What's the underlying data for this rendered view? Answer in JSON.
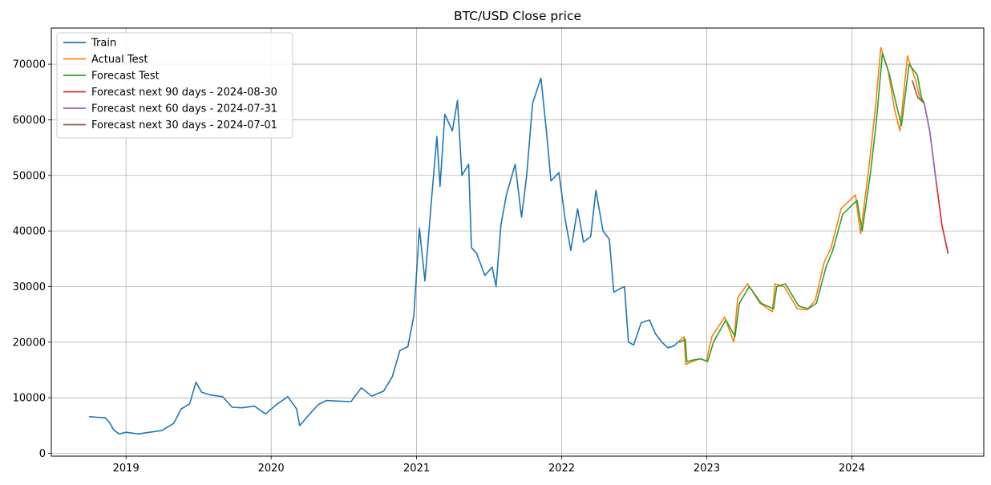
{
  "chart_data": {
    "type": "line",
    "title": "BTC/USD Close price",
    "xlabel": "",
    "ylabel": "",
    "xlim": [
      "2018-06-27",
      "2024-11-28"
    ],
    "ylim": [
      -500,
      76500
    ],
    "x_ticks": [
      "2019",
      "2020",
      "2021",
      "2022",
      "2023",
      "2024"
    ],
    "y_ticks": [
      0,
      10000,
      20000,
      30000,
      40000,
      50000,
      60000,
      70000
    ],
    "grid": true,
    "legend_position": "upper-left",
    "series": [
      {
        "name": "Train",
        "color": "#1f77b4",
        "x": [
          "2018-10-01",
          "2018-10-20",
          "2018-11-10",
          "2018-11-20",
          "2018-12-01",
          "2018-12-15",
          "2019-01-01",
          "2019-02-01",
          "2019-03-01",
          "2019-04-01",
          "2019-05-01",
          "2019-05-20",
          "2019-06-10",
          "2019-06-26",
          "2019-07-10",
          "2019-08-01",
          "2019-09-01",
          "2019-09-25",
          "2019-10-20",
          "2019-11-20",
          "2019-12-18",
          "2020-01-15",
          "2020-02-12",
          "2020-03-05",
          "2020-03-13",
          "2020-04-01",
          "2020-04-29",
          "2020-05-20",
          "2020-06-15",
          "2020-07-20",
          "2020-08-15",
          "2020-09-10",
          "2020-10-10",
          "2020-11-01",
          "2020-11-20",
          "2020-12-10",
          "2020-12-25",
          "2021-01-08",
          "2021-01-22",
          "2021-02-08",
          "2021-02-21",
          "2021-03-01",
          "2021-03-13",
          "2021-04-01",
          "2021-04-14",
          "2021-04-25",
          "2021-05-12",
          "2021-05-19",
          "2021-06-01",
          "2021-06-22",
          "2021-07-10",
          "2021-07-20",
          "2021-08-01",
          "2021-08-15",
          "2021-09-06",
          "2021-09-22",
          "2021-10-05",
          "2021-10-20",
          "2021-11-10",
          "2021-11-25",
          "2021-12-05",
          "2021-12-25",
          "2022-01-10",
          "2022-01-24",
          "2022-02-10",
          "2022-02-25",
          "2022-03-15",
          "2022-03-28",
          "2022-04-15",
          "2022-05-01",
          "2022-05-12",
          "2022-05-25",
          "2022-06-08",
          "2022-06-18",
          "2022-07-01",
          "2022-07-20",
          "2022-08-10",
          "2022-08-25",
          "2022-09-10",
          "2022-09-25",
          "2022-10-10",
          "2022-10-25"
        ],
        "values": [
          6600,
          6500,
          6400,
          5600,
          4200,
          3500,
          3800,
          3500,
          3800,
          4100,
          5400,
          8000,
          8900,
          12800,
          11000,
          10500,
          10200,
          8300,
          8200,
          8500,
          7100,
          8800,
          10200,
          8000,
          5000,
          6600,
          8800,
          9500,
          9400,
          9300,
          11800,
          10300,
          11200,
          13800,
          18500,
          19200,
          24700,
          40500,
          31000,
          46000,
          57000,
          48000,
          61000,
          58000,
          63500,
          50000,
          52000,
          37000,
          36000,
          32000,
          33500,
          30000,
          41000,
          46500,
          52000,
          42500,
          50000,
          63000,
          67500,
          57000,
          49000,
          50500,
          42000,
          36500,
          44000,
          38000,
          39000,
          47300,
          40000,
          38500,
          29000,
          29500,
          30000,
          20000,
          19500,
          23500,
          24000,
          21500,
          20000,
          19000,
          19300,
          20300
        ]
      },
      {
        "name": "Actual Test",
        "color": "#ff7f0e",
        "x": [
          "2022-10-25",
          "2022-11-05",
          "2022-11-09",
          "2022-11-25",
          "2022-12-15",
          "2022-12-31",
          "2023-01-14",
          "2023-02-15",
          "2023-03-10",
          "2023-03-20",
          "2023-04-14",
          "2023-05-15",
          "2023-06-15",
          "2023-06-22",
          "2023-07-15",
          "2023-08-17",
          "2023-09-10",
          "2023-10-01",
          "2023-10-24",
          "2023-11-10",
          "2023-12-05",
          "2024-01-10",
          "2024-01-23",
          "2024-02-14",
          "2024-02-29",
          "2024-03-14",
          "2024-04-01",
          "2024-04-17",
          "2024-05-01",
          "2024-05-20",
          "2024-06-10",
          "2024-06-20",
          "2024-07-01"
        ],
        "values": [
          20300,
          21000,
          16000,
          16500,
          17000,
          16600,
          21000,
          24500,
          20000,
          28000,
          30500,
          27000,
          25500,
          30500,
          30000,
          26000,
          25800,
          27500,
          34500,
          37000,
          44000,
          46500,
          39500,
          52000,
          62000,
          73000,
          69000,
          62000,
          58000,
          71500,
          67000,
          64000,
          63000
        ]
      },
      {
        "name": "Forecast Test",
        "color": "#2ca02c",
        "x": [
          "2022-10-25",
          "2022-11-08",
          "2022-11-12",
          "2022-11-28",
          "2022-12-18",
          "2023-01-03",
          "2023-01-18",
          "2023-02-18",
          "2023-03-13",
          "2023-03-24",
          "2023-04-18",
          "2023-05-18",
          "2023-06-18",
          "2023-06-26",
          "2023-07-18",
          "2023-08-20",
          "2023-09-13",
          "2023-10-04",
          "2023-10-28",
          "2023-11-14",
          "2023-12-09",
          "2024-01-14",
          "2024-01-27",
          "2024-02-18",
          "2024-03-03",
          "2024-03-18",
          "2024-04-05",
          "2024-04-21",
          "2024-05-05",
          "2024-05-24",
          "2024-06-14",
          "2024-06-24",
          "2024-07-01"
        ],
        "values": [
          20000,
          20500,
          16500,
          16800,
          17000,
          16500,
          20000,
          24000,
          21000,
          27000,
          30000,
          27000,
          26000,
          30000,
          30500,
          26500,
          26000,
          27000,
          33500,
          36500,
          43000,
          45500,
          40000,
          51000,
          60000,
          72000,
          68000,
          63000,
          59000,
          70000,
          68000,
          64000,
          63000
        ]
      },
      {
        "name": "Forecast next 90 days - 2024-08-30",
        "color": "#d62728",
        "x": [
          "2024-07-01",
          "2024-07-15",
          "2024-07-31",
          "2024-08-15",
          "2024-08-30"
        ],
        "values": [
          63000,
          58000,
          49000,
          41000,
          36000
        ]
      },
      {
        "name": "Forecast next 60 days - 2024-07-31",
        "color": "#9467bd",
        "x": [
          "2024-07-01",
          "2024-07-15",
          "2024-07-31"
        ],
        "values": [
          63000,
          58000,
          49000
        ]
      },
      {
        "name": "Forecast next 30 days - 2024-07-01",
        "color": "#8c564b",
        "x": [
          "2024-06-01",
          "2024-06-15",
          "2024-07-01"
        ],
        "values": [
          67000,
          64000,
          63000
        ]
      }
    ]
  }
}
